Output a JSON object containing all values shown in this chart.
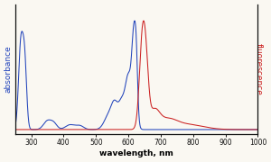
{
  "background_color": "#faf8f2",
  "xlim": [
    250,
    1000
  ],
  "xticks": [
    300,
    400,
    500,
    600,
    700,
    800,
    900,
    1000
  ],
  "xlabel": "wavelength, nm",
  "ylabel_left": "absorbance",
  "ylabel_right": "fluorescence",
  "left_ylabel_color": "#2244bb",
  "right_ylabel_color": "#cc2222",
  "line_color_blue": "#2244bb",
  "line_color_red": "#cc2222",
  "spine_color": "#111111",
  "figsize": [
    3.0,
    1.8
  ],
  "dpi": 100
}
